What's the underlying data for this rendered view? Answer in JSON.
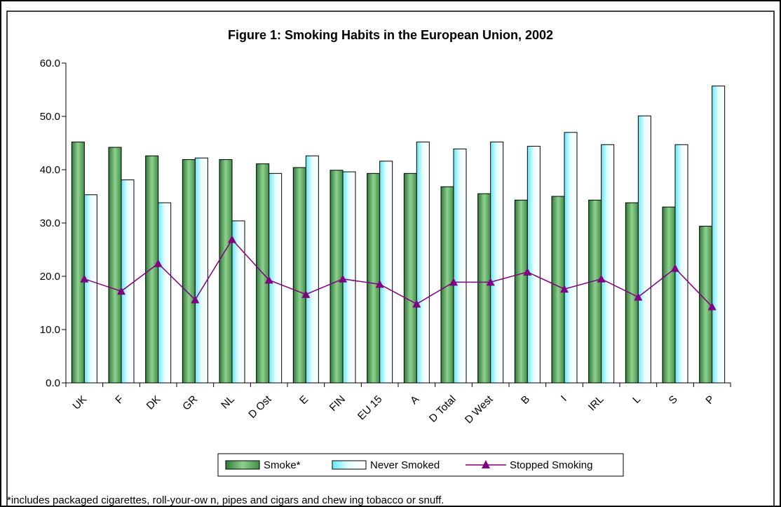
{
  "chart_data": {
    "type": "bar",
    "title": "Figure 1: Smoking Habits in the European Union, 2002",
    "categories": [
      "UK",
      "F",
      "DK",
      "GR",
      "NL",
      "D Ost",
      "E",
      "FIN",
      "EU 15",
      "A",
      "D Total",
      "D West",
      "B",
      "I",
      "IRL",
      "L",
      "S",
      "P"
    ],
    "series": [
      {
        "name": "Smoke*",
        "type": "bar",
        "color": "#5fae5f",
        "values": [
          45.2,
          44.2,
          42.6,
          41.9,
          41.9,
          41.1,
          40.4,
          39.9,
          39.3,
          39.3,
          36.8,
          35.5,
          34.3,
          35.0,
          34.3,
          33.8,
          33.0,
          29.4
        ]
      },
      {
        "name": "Never Smoked",
        "type": "bar",
        "color": "#c8f8ff",
        "values": [
          35.3,
          38.1,
          33.8,
          42.2,
          30.4,
          39.3,
          42.6,
          39.6,
          41.6,
          45.2,
          43.9,
          45.2,
          44.4,
          47.0,
          44.7,
          50.1,
          44.7,
          55.7
        ]
      },
      {
        "name": "Stopped Smoking",
        "type": "line",
        "color": "#800080",
        "values": [
          19.5,
          17.2,
          22.4,
          15.6,
          26.9,
          19.3,
          16.6,
          19.5,
          18.5,
          14.8,
          18.9,
          18.9,
          20.8,
          17.6,
          19.5,
          16.1,
          21.5,
          14.3
        ]
      }
    ],
    "ylim": [
      0,
      60
    ],
    "yticks": [
      "0.0",
      "10.0",
      "20.0",
      "30.0",
      "40.0",
      "50.0",
      "60.0"
    ],
    "grid": false,
    "legend": "bottom",
    "footnote": "*includes packaged cigarettes, roll-your-ow n, pipes and cigars and chew ing tobacco or snuff."
  }
}
